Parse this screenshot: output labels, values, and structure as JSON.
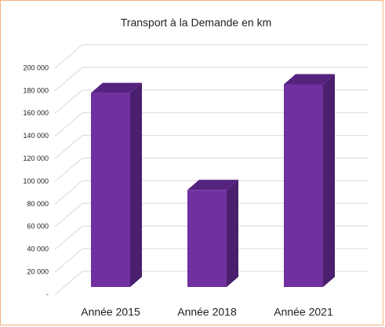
{
  "chart_data": {
    "type": "bar3d",
    "title": "Transport à la Demande en km",
    "categories": [
      "Année 2015",
      "Année 2018",
      "Année 2021"
    ],
    "values": [
      178000,
      89000,
      186000
    ],
    "color": "#7030a0",
    "ylim": [
      0,
      200000
    ],
    "yticks": [
      {
        "value": 0,
        "label": "-"
      },
      {
        "value": 20000,
        "label": "20 000"
      },
      {
        "value": 40000,
        "label": "40 000"
      },
      {
        "value": 60000,
        "label": "60 000"
      },
      {
        "value": 80000,
        "label": "80 000"
      },
      {
        "value": 100000,
        "label": "100 000"
      },
      {
        "value": 120000,
        "label": "120 000"
      },
      {
        "value": 140000,
        "label": "140 000"
      },
      {
        "value": 160000,
        "label": "160 000"
      },
      {
        "value": 180000,
        "label": "180 000"
      },
      {
        "value": 200000,
        "label": "200 000"
      }
    ],
    "grid": true
  }
}
